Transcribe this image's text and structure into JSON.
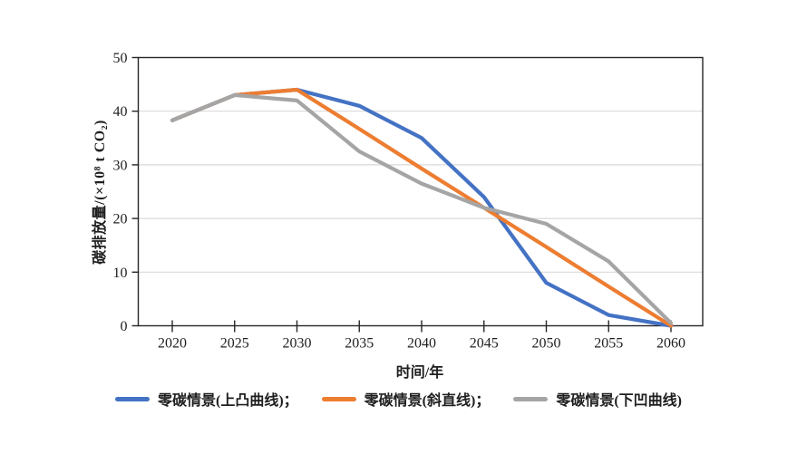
{
  "chart_data": {
    "type": "line",
    "title": "",
    "x_title": "时间/年",
    "y_title": "碳排放量/(×10⁸ t CO₂)",
    "categories": [
      "2020",
      "2025",
      "2030",
      "2035",
      "2040",
      "2045",
      "2050",
      "2055",
      "2060"
    ],
    "ylim": [
      0,
      50
    ],
    "yticks": [
      0,
      10,
      20,
      30,
      40,
      50
    ],
    "grid": "horizontal",
    "legend_position": "bottom",
    "axis_color": "#262626",
    "gridline_color": "#d9d9d9",
    "series": [
      {
        "name": "零碳情景(上凸曲线)",
        "legend_label": "零碳情景(上凸曲线)；",
        "color": "#4472C4",
        "values": [
          38.3,
          43,
          44,
          41,
          35,
          24,
          8,
          2,
          0
        ]
      },
      {
        "name": "零碳情景(斜直线)",
        "legend_label": "零碳情景(斜直线)；",
        "color": "#ED7D31",
        "values": [
          38.3,
          43,
          44,
          36.7,
          29.3,
          22,
          14.7,
          7.3,
          0
        ]
      },
      {
        "name": "零碳情景(下凹曲线)",
        "legend_label": "零碳情景(下凹曲线)",
        "color": "#A5A5A5",
        "values": [
          38.3,
          43,
          42,
          32.5,
          26.5,
          22,
          19,
          12,
          0.5
        ]
      }
    ]
  }
}
